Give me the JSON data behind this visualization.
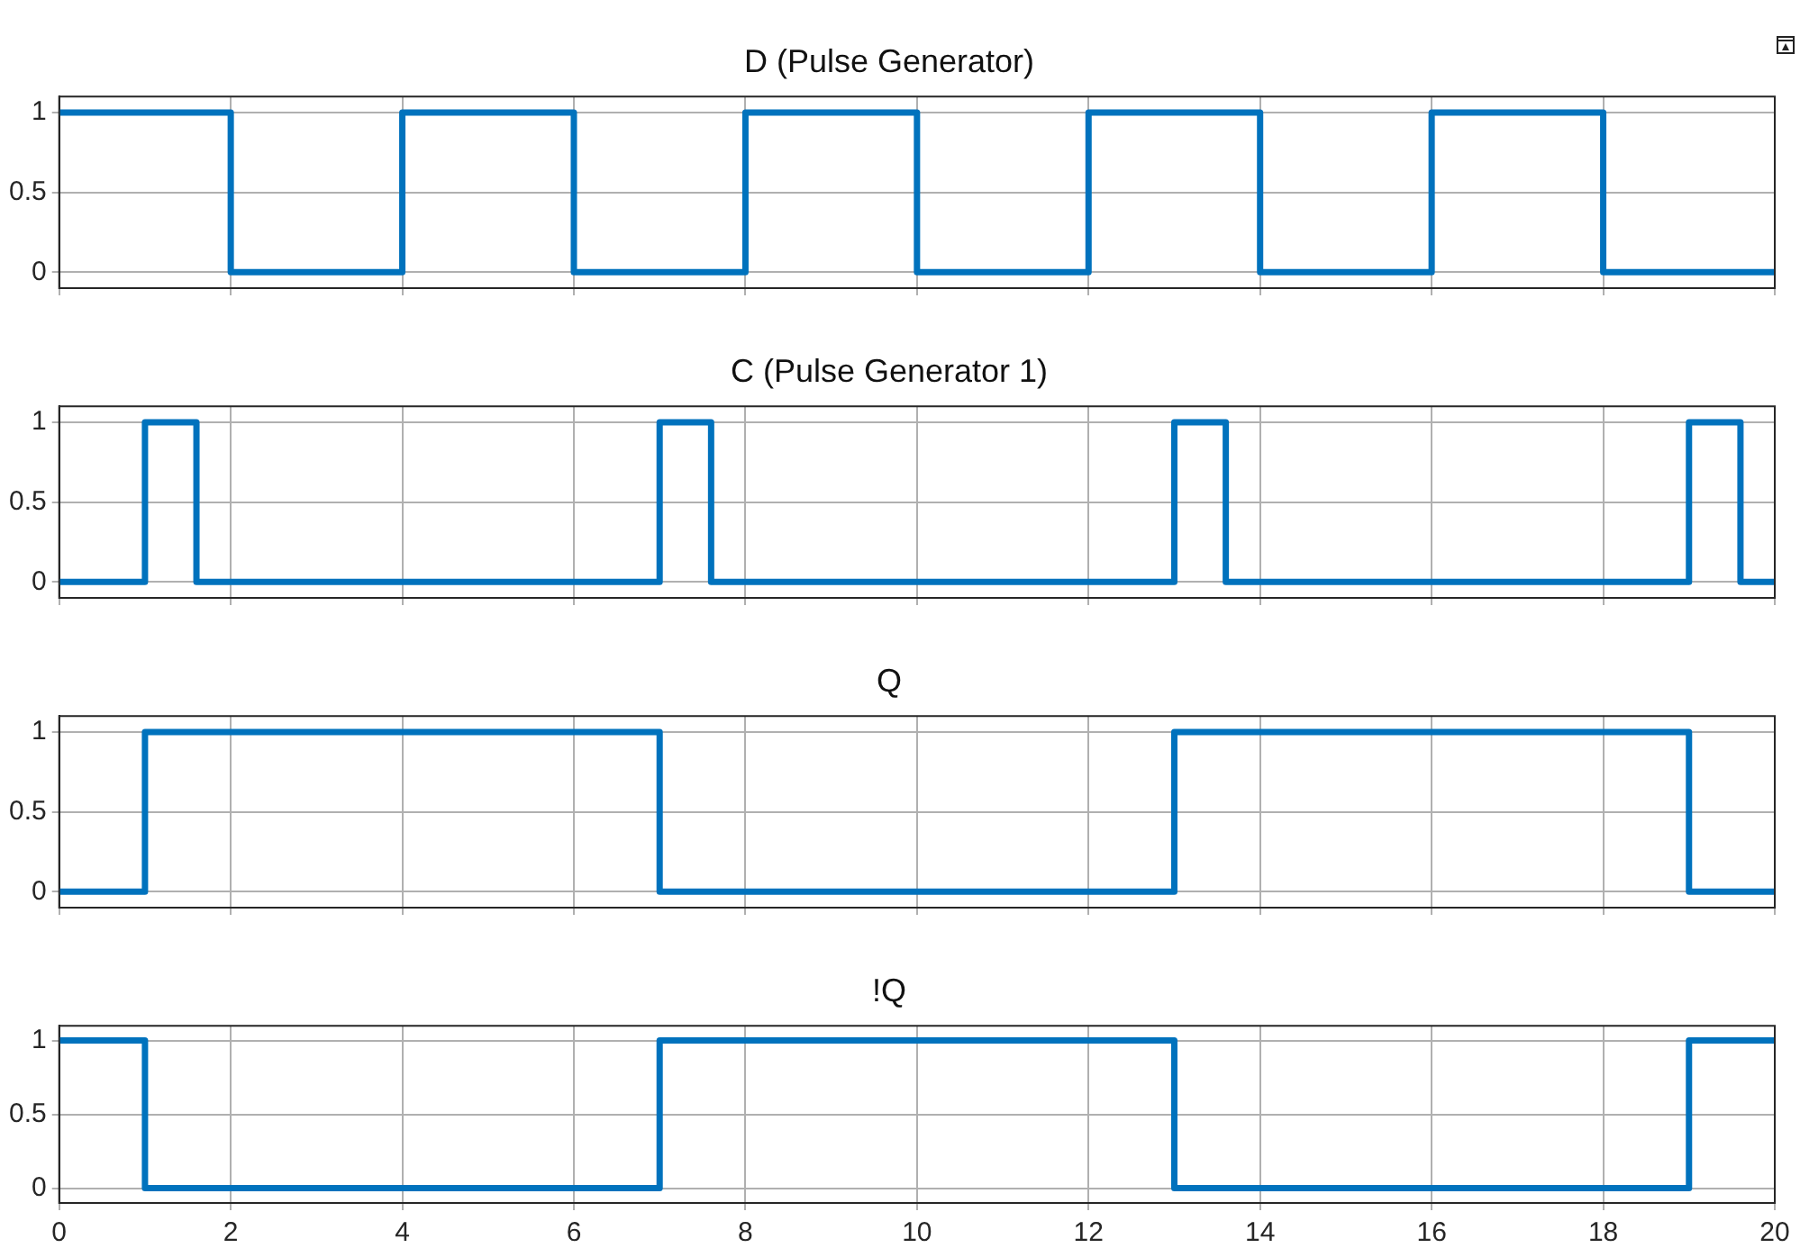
{
  "chart_data": [
    {
      "type": "step",
      "title": "D (Pulse Generator)",
      "x": [
        0,
        2,
        4,
        6,
        8,
        10,
        12,
        14,
        16,
        18,
        20
      ],
      "values": [
        1,
        0,
        1,
        0,
        1,
        0,
        1,
        0,
        1,
        0,
        0
      ],
      "color": "#0072bd",
      "xlim": [
        0,
        20
      ],
      "xticks": [
        0,
        2,
        4,
        6,
        8,
        10,
        12,
        14,
        16,
        18,
        20
      ],
      "ylim": [
        -0.1,
        1.1
      ],
      "yticks": [
        0,
        0.5,
        1
      ],
      "grid": true,
      "tick_labels": "y",
      "marker": "none",
      "line_style": "solid"
    },
    {
      "type": "step",
      "title": "C (Pulse Generator 1)",
      "x": [
        0,
        1,
        1.6,
        7,
        7.6,
        13,
        13.6,
        19,
        19.6,
        20
      ],
      "values": [
        0,
        1,
        0,
        1,
        0,
        1,
        0,
        1,
        0,
        0
      ],
      "color": "#0072bd",
      "xlim": [
        0,
        20
      ],
      "xticks": [
        0,
        2,
        4,
        6,
        8,
        10,
        12,
        14,
        16,
        18,
        20
      ],
      "ylim": [
        -0.1,
        1.1
      ],
      "yticks": [
        0,
        0.5,
        1
      ],
      "grid": true,
      "tick_labels": "y",
      "marker": "none",
      "line_style": "solid"
    },
    {
      "type": "step",
      "title": "Q",
      "x": [
        0,
        1,
        7,
        13,
        19,
        20
      ],
      "values": [
        0,
        1,
        0,
        1,
        0,
        0
      ],
      "color": "#0072bd",
      "xlim": [
        0,
        20
      ],
      "xticks": [
        0,
        2,
        4,
        6,
        8,
        10,
        12,
        14,
        16,
        18,
        20
      ],
      "ylim": [
        -0.1,
        1.1
      ],
      "yticks": [
        0,
        0.5,
        1
      ],
      "grid": true,
      "tick_labels": "y",
      "marker": "none",
      "line_style": "solid"
    },
    {
      "type": "step",
      "title": "!Q",
      "x": [
        0,
        1,
        7,
        13,
        19,
        20
      ],
      "values": [
        1,
        0,
        1,
        0,
        1,
        1
      ],
      "color": "#0072bd",
      "xlim": [
        0,
        20
      ],
      "xticks": [
        0,
        2,
        4,
        6,
        8,
        10,
        12,
        14,
        16,
        18,
        20
      ],
      "ylim": [
        -0.1,
        1.1
      ],
      "yticks": [
        0,
        0.5,
        1
      ],
      "grid": true,
      "marker": "none",
      "line_style": "solid"
    }
  ]
}
